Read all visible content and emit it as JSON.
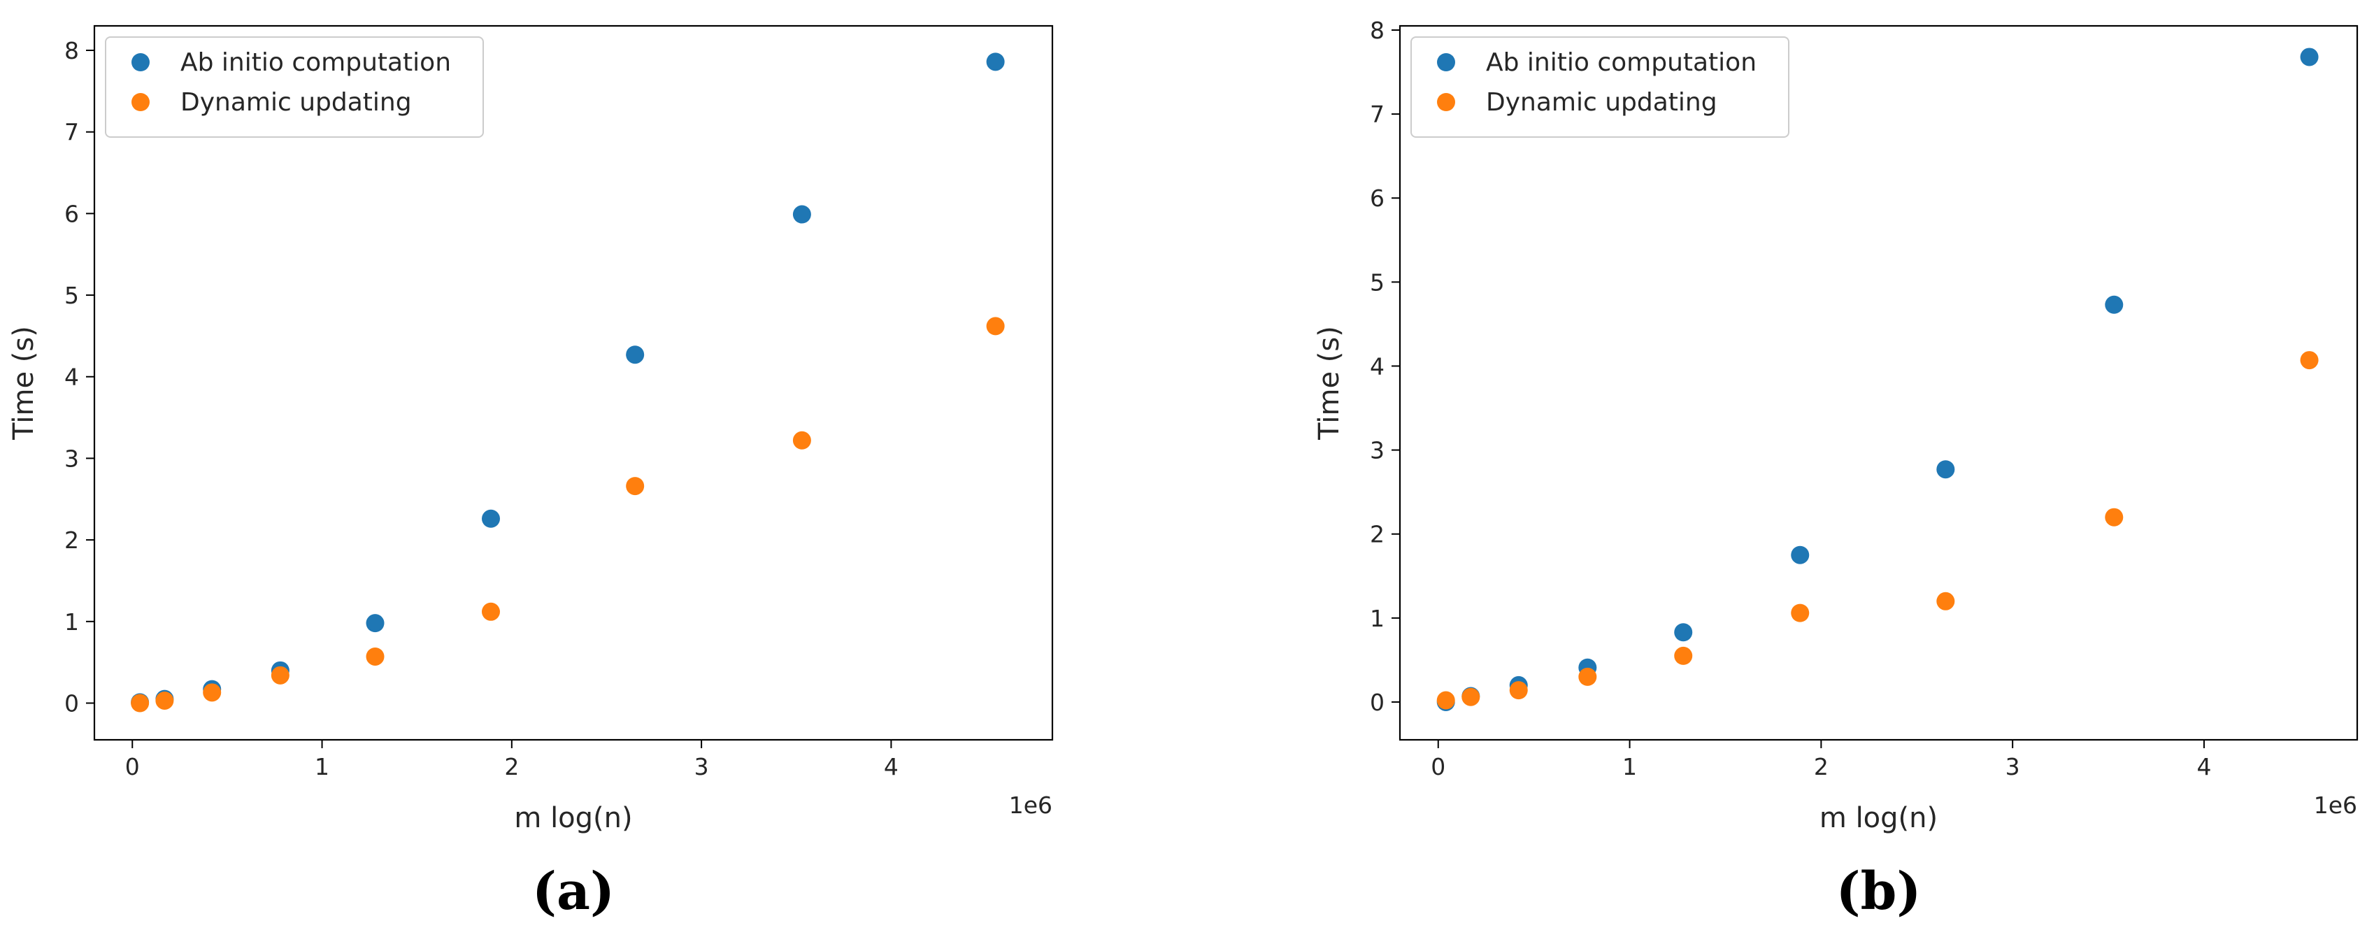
{
  "chart_data": [
    {
      "type": "scatter",
      "panel_label": "(a)",
      "xlabel": "m log(n)",
      "ylabel": "Time (s)",
      "x_offset_label": "1e6",
      "xlim": [
        -0.2,
        4.85
      ],
      "ylim": [
        -0.45,
        8.3
      ],
      "xticks": [
        0,
        1,
        2,
        3,
        4
      ],
      "yticks": [
        0,
        1,
        2,
        3,
        4,
        5,
        6,
        7,
        8
      ],
      "grid": false,
      "legend": "upper-left",
      "x": [
        0.04,
        0.17,
        0.42,
        0.78,
        1.28,
        1.89,
        2.65,
        3.53,
        4.55
      ],
      "series": [
        {
          "name": "Ab initio computation",
          "color": "#1f77b4",
          "values": [
            0.01,
            0.05,
            0.17,
            0.4,
            0.98,
            2.26,
            4.27,
            5.99,
            7.86
          ]
        },
        {
          "name": "Dynamic updating",
          "color": "#ff7f0e",
          "values": [
            0.0,
            0.03,
            0.13,
            0.34,
            0.57,
            1.12,
            2.66,
            3.22,
            4.62
          ]
        }
      ]
    },
    {
      "type": "scatter",
      "panel_label": "(b)",
      "xlabel": "m log(n)",
      "ylabel": "Time (s)",
      "x_offset_label": "1e6",
      "xlim": [
        -0.2,
        4.8
      ],
      "ylim": [
        -0.45,
        8.05
      ],
      "xticks": [
        0,
        1,
        2,
        3,
        4
      ],
      "yticks": [
        0,
        1,
        2,
        3,
        4,
        5,
        6,
        7,
        8
      ],
      "grid": false,
      "legend": "upper-left",
      "x": [
        0.04,
        0.17,
        0.42,
        0.78,
        1.28,
        1.89,
        2.65,
        3.53,
        4.55
      ],
      "series": [
        {
          "name": "Ab initio computation",
          "color": "#1f77b4",
          "values": [
            0.0,
            0.07,
            0.2,
            0.41,
            0.83,
            1.75,
            2.77,
            4.73,
            7.68
          ]
        },
        {
          "name": "Dynamic updating",
          "color": "#ff7f0e",
          "values": [
            0.02,
            0.06,
            0.14,
            0.3,
            0.55,
            1.06,
            1.2,
            2.2,
            4.07
          ]
        }
      ]
    }
  ]
}
